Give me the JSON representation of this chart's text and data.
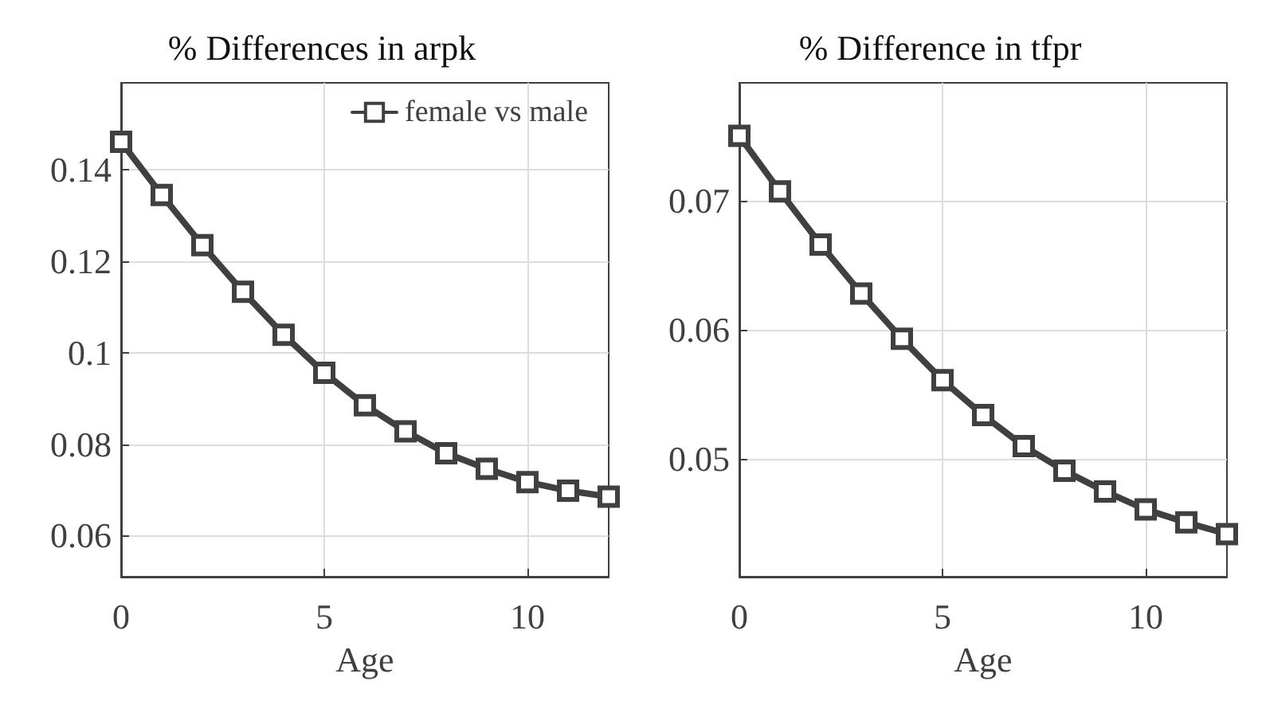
{
  "chart_data": [
    {
      "type": "line",
      "title": "% Differences in arpk",
      "xlabel": "Age",
      "x": [
        0,
        1,
        2,
        3,
        4,
        5,
        6,
        7,
        8,
        9,
        10,
        11,
        12
      ],
      "series": [
        {
          "name": "female vs male",
          "color": "#404040",
          "values": [
            0.1461,
            0.1345,
            0.1235,
            0.1133,
            0.1039,
            0.0956,
            0.0885,
            0.0828,
            0.078,
            0.0746,
            0.0717,
            0.0698,
            0.0685
          ]
        }
      ],
      "xlim": [
        0,
        12
      ],
      "xticks": [
        0,
        5,
        10
      ],
      "ylim": [
        0.051,
        0.159
      ],
      "yticks": [
        0.06,
        0.08,
        0.1,
        0.12,
        0.14
      ],
      "grid": true,
      "legend": "top right",
      "marker": "square",
      "line_style": "solid"
    },
    {
      "type": "line",
      "title": "% Difference in tfpr",
      "xlabel": "Age",
      "x": [
        0,
        1,
        2,
        3,
        4,
        5,
        6,
        7,
        8,
        9,
        10,
        11,
        12
      ],
      "series": [
        {
          "color": "#404040",
          "values": [
            0.075,
            0.0707,
            0.0666,
            0.0628,
            0.0593,
            0.0561,
            0.0534,
            0.051,
            0.0491,
            0.0475,
            0.0461,
            0.0451,
            0.0442
          ]
        }
      ],
      "xlim": [
        0,
        12
      ],
      "xticks": [
        0,
        5,
        10
      ],
      "ylim": [
        0.0409,
        0.0791
      ],
      "yticks": [
        0.05,
        0.06,
        0.07
      ],
      "grid": true,
      "marker": "square",
      "line_style": "solid"
    }
  ]
}
